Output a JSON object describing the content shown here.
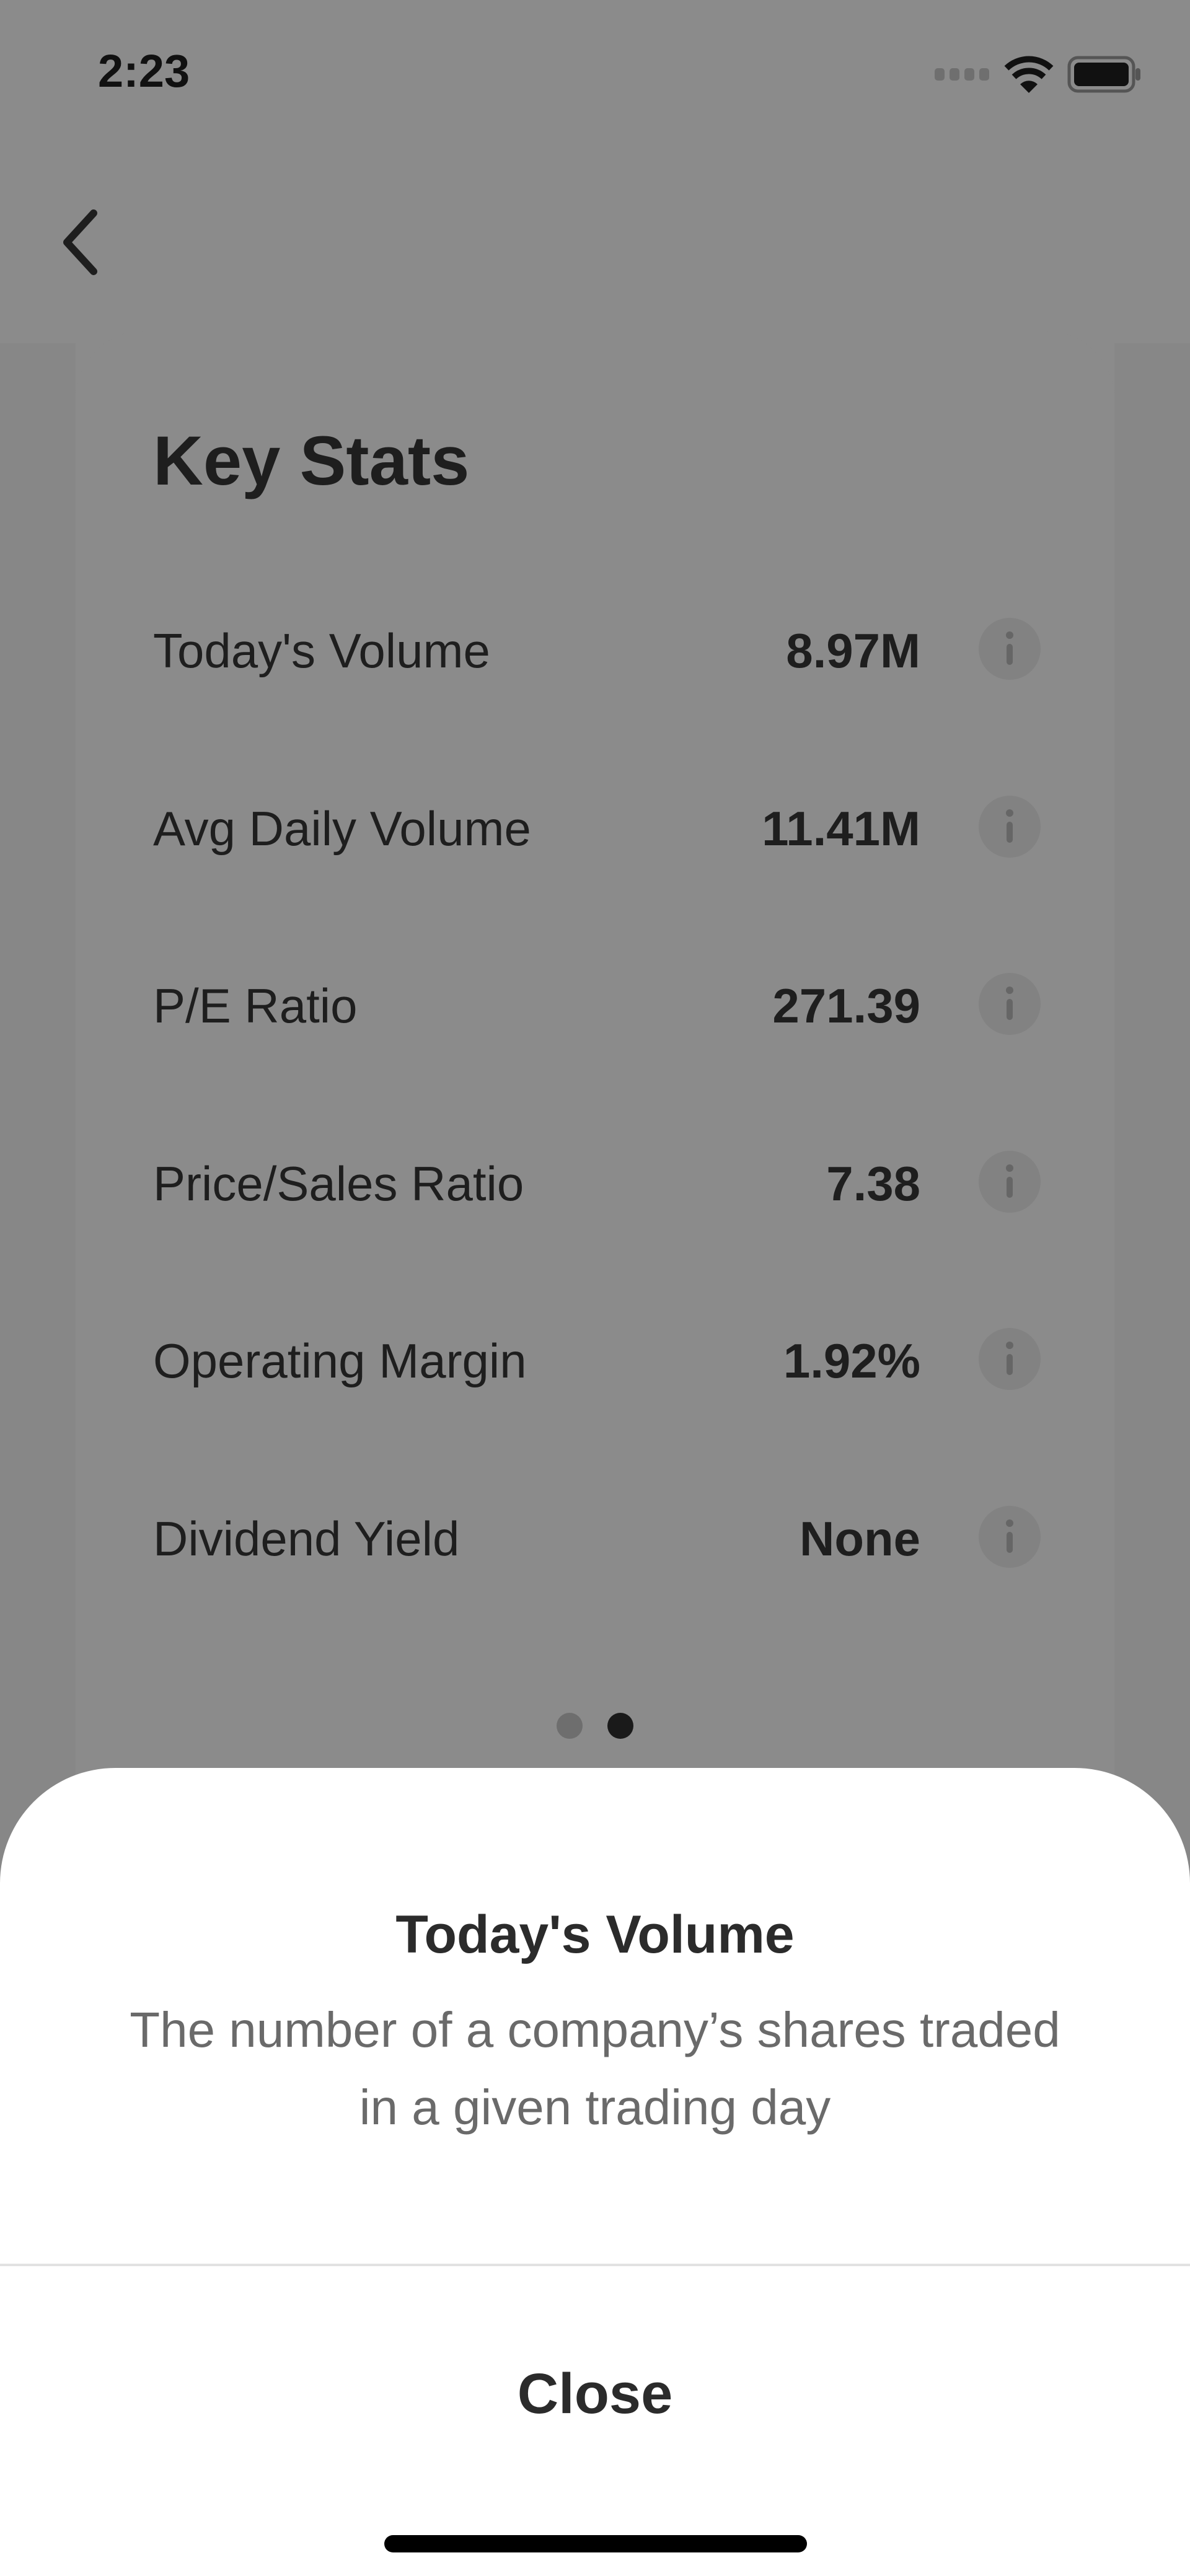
{
  "status_bar": {
    "time": "2:23",
    "icons": [
      "cellular-signal-icon",
      "wifi-icon",
      "battery-icon"
    ]
  },
  "nav": {
    "back_icon": "chevron-left-icon"
  },
  "key_stats": {
    "title": "Key Stats",
    "rows": [
      {
        "label": "Today's Volume",
        "value": "8.97M"
      },
      {
        "label": "Avg Daily Volume",
        "value": "11.41M"
      },
      {
        "label": "P/E Ratio",
        "value": "271.39"
      },
      {
        "label": "Price/Sales Ratio",
        "value": "7.38"
      },
      {
        "label": "Operating Margin",
        "value": "1.92%"
      },
      {
        "label": "Dividend Yield",
        "value": "None"
      }
    ],
    "pager": {
      "pages": 2,
      "current": 2
    }
  },
  "sheet": {
    "title": "Today's Volume",
    "description": "The number of a company’s shares traded in a given trading day",
    "close_label": "Close"
  }
}
